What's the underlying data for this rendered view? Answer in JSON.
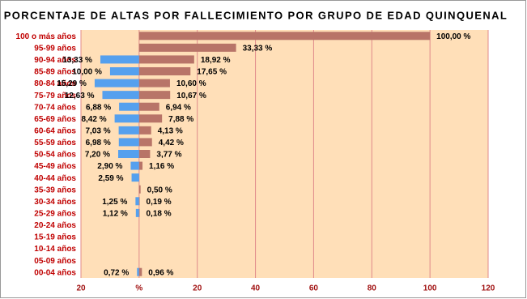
{
  "chart_data": {
    "type": "bar",
    "orientation": "horizontal",
    "title": "PORCENTAJE DE ALTAS POR FALLECIMIENTO POR GRUPO DE EDAD QUINQUENAL",
    "categories": [
      "100 o más años",
      "95-99 años",
      "90-94 años",
      "85-89 años",
      "80-84 años",
      "75-79 años",
      "70-74 años",
      "65-69 años",
      "60-64 años",
      "55-59 años",
      "50-54 años",
      "45-49 años",
      "40-44 años",
      "35-39 años",
      "30-34 años",
      "25-29 años",
      "20-24 años",
      "15-19 años",
      "10-14 años",
      "05-09 años",
      "00-04 años"
    ],
    "series": [
      {
        "color": "#55a0ee",
        "direction": "left",
        "values": [
          null,
          null,
          13.33,
          10.0,
          15.29,
          12.63,
          6.88,
          8.42,
          7.03,
          6.98,
          7.2,
          2.9,
          2.59,
          null,
          1.25,
          1.12,
          null,
          null,
          null,
          null,
          0.72
        ],
        "value_labels": [
          null,
          null,
          "13,33 %",
          "10,00 %",
          "15,29 %",
          "12,63 %",
          "6,88 %",
          "8,42 %",
          "7,03 %",
          "6,98 %",
          "7,20 %",
          "2,90 %",
          "2,59 %",
          null,
          "1,25 %",
          "1,12 %",
          null,
          null,
          null,
          null,
          "0,72 %"
        ]
      },
      {
        "color": "#b87468",
        "direction": "right",
        "values": [
          100.0,
          33.33,
          18.92,
          17.65,
          10.6,
          10.67,
          6.94,
          7.88,
          4.13,
          4.42,
          3.77,
          1.16,
          null,
          0.5,
          0.19,
          0.18,
          null,
          null,
          null,
          null,
          0.96
        ],
        "value_labels": [
          "100,00 %",
          "33,33 %",
          "18,92 %",
          "17,65 %",
          "10,60 %",
          "10,67 %",
          "6,94 %",
          "7,88 %",
          "4,13 %",
          "4,42 %",
          "3,77 %",
          "1,16 %",
          null,
          "0,50 %",
          "0,19 %",
          "0,18 %",
          null,
          null,
          null,
          null,
          "0,96 %"
        ]
      }
    ],
    "xlim": [
      -20,
      120
    ],
    "xticks": [
      {
        "value": -20,
        "label": "20"
      },
      {
        "value": 0,
        "label": "%"
      },
      20,
      40,
      60,
      80,
      100,
      120
    ],
    "grid": true
  }
}
